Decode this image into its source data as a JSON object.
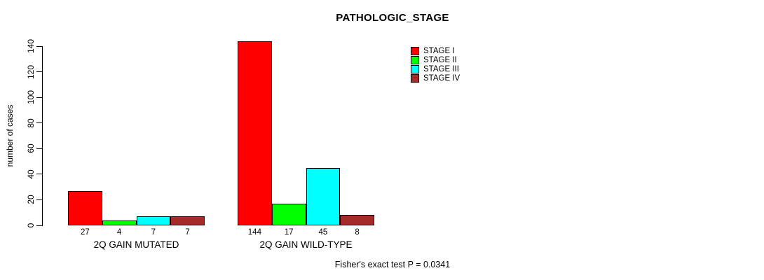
{
  "chart_data": {
    "type": "bar",
    "title": "PATHOLOGIC_STAGE",
    "xlabel": "",
    "ylabel": "number of cases",
    "categories": [
      "2Q GAIN MUTATED",
      "2Q GAIN WILD-TYPE"
    ],
    "series": [
      {
        "name": "STAGE I",
        "color": "#ff0000",
        "values": [
          27,
          144
        ]
      },
      {
        "name": "STAGE II",
        "color": "#00ff00",
        "values": [
          4,
          17
        ]
      },
      {
        "name": "STAGE III",
        "color": "#00ffff",
        "values": [
          7,
          45
        ]
      },
      {
        "name": "STAGE IV",
        "color": "#a52a2a",
        "values": [
          7,
          8
        ]
      }
    ],
    "ylim": [
      0,
      140
    ],
    "yticks": [
      0,
      20,
      40,
      60,
      80,
      100,
      120,
      140
    ],
    "bar_value_labels_shown": true,
    "grid": false,
    "legend_position": "top-right",
    "annotation": "Fisher's exact test P = 0.0341"
  }
}
